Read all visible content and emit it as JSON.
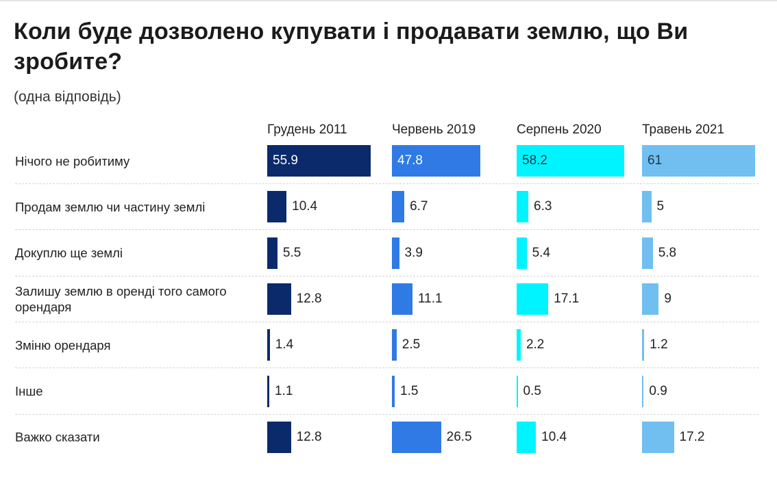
{
  "title": "Коли буде дозволено купувати і продавати землю, що Ви зробите?",
  "subtitle": "(одна відповідь)",
  "chart_data": {
    "type": "bar",
    "xlim": [
      0,
      61
    ],
    "categories": [
      "Нічого не робитиму",
      "Продам землю чи частину землі",
      "Докуплю ще землі",
      "Залишу землю в оренді того самого орендаря",
      "Зміню орендаря",
      "Інше",
      "Важко сказати"
    ],
    "series": [
      {
        "name": "Грудень 2011",
        "color": "#0b2a6b",
        "values": [
          55.9,
          10.4,
          5.5,
          12.8,
          1.4,
          1.1,
          12.8
        ]
      },
      {
        "name": "Червень 2019",
        "color": "#2f7ae5",
        "values": [
          47.8,
          6.7,
          3.9,
          11.1,
          2.5,
          1.5,
          26.5
        ]
      },
      {
        "name": "Серпень 2020",
        "color": "#00f4ff",
        "values": [
          58.2,
          6.3,
          5.4,
          17.1,
          2.2,
          0.5,
          10.4
        ]
      },
      {
        "name": "Травень 2021",
        "color": "#70bff0",
        "values": [
          61,
          5,
          5.8,
          9,
          1.2,
          0.9,
          17.2
        ]
      }
    ],
    "value_labels": [
      [
        "55.9",
        "10.4",
        "5.5",
        "12.8",
        "1.4",
        "1.1",
        "12.8"
      ],
      [
        "47.8",
        "6.7",
        "3.9",
        "11.1",
        "2.5",
        "1.5",
        "26.5"
      ],
      [
        "58.2",
        "6.3",
        "5.4",
        "17.1",
        "2.2",
        "0.5",
        "10.4"
      ],
      [
        "61",
        "5",
        "5.8",
        "9",
        "1.2",
        "0.9",
        "17.2"
      ]
    ]
  }
}
